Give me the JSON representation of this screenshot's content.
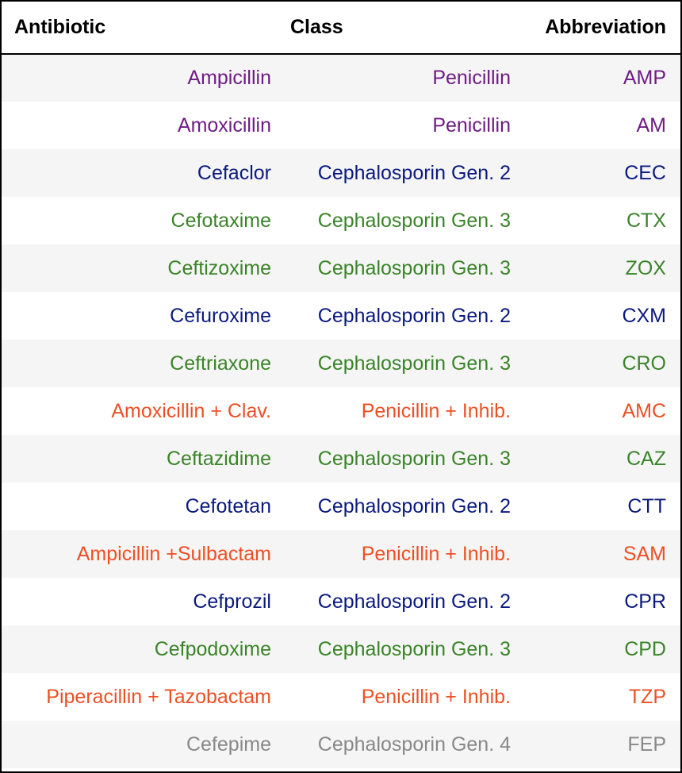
{
  "table": {
    "headers": [
      "Antibiotic",
      "Class",
      "Abbreviation"
    ],
    "class_colors": {
      "Penicillin": "#6e1c84",
      "Cephalosporin Gen. 2": "#0b1a7e",
      "Cephalosporin Gen. 3": "#3a8428",
      "Penicillin + Inhib.": "#ee4f24",
      "Cephalosporin Gen. 4": "#888888"
    },
    "rows": [
      {
        "antibiotic": "Ampicillin",
        "class": "Penicillin",
        "abbreviation": "AMP",
        "color": "#6e1c84"
      },
      {
        "antibiotic": "Amoxicillin",
        "class": "Penicillin",
        "abbreviation": "AM",
        "color": "#6e1c84"
      },
      {
        "antibiotic": "Cefaclor",
        "class": "Cephalosporin Gen. 2",
        "abbreviation": "CEC",
        "color": "#0b1a7e"
      },
      {
        "antibiotic": "Cefotaxime",
        "class": "Cephalosporin Gen. 3",
        "abbreviation": "CTX",
        "color": "#3a8428"
      },
      {
        "antibiotic": "Ceftizoxime",
        "class": "Cephalosporin Gen. 3",
        "abbreviation": "ZOX",
        "color": "#3a8428"
      },
      {
        "antibiotic": "Cefuroxime",
        "class": "Cephalosporin Gen. 2",
        "abbreviation": "CXM",
        "color": "#0b1a7e"
      },
      {
        "antibiotic": "Ceftriaxone",
        "class": "Cephalosporin Gen. 3",
        "abbreviation": "CRO",
        "color": "#3a8428"
      },
      {
        "antibiotic": "Amoxicillin + Clav.",
        "class": "Penicillin + Inhib.",
        "abbreviation": "AMC",
        "color": "#ee4f24"
      },
      {
        "antibiotic": "Ceftazidime",
        "class": "Cephalosporin Gen. 3",
        "abbreviation": "CAZ",
        "color": "#3a8428"
      },
      {
        "antibiotic": "Cefotetan",
        "class": "Cephalosporin Gen. 2",
        "abbreviation": "CTT",
        "color": "#0b1a7e"
      },
      {
        "antibiotic": "Ampicillin +Sulbactam",
        "class": "Penicillin + Inhib.",
        "abbreviation": "SAM",
        "color": "#ee4f24"
      },
      {
        "antibiotic": "Cefprozil",
        "class": "Cephalosporin Gen. 2",
        "abbreviation": "CPR",
        "color": "#0b1a7e"
      },
      {
        "antibiotic": "Cefpodoxime",
        "class": "Cephalosporin Gen. 3",
        "abbreviation": "CPD",
        "color": "#3a8428"
      },
      {
        "antibiotic": "Piperacillin + Tazobactam",
        "class": "Penicillin + Inhib.",
        "abbreviation": "TZP",
        "color": "#ee4f24"
      },
      {
        "antibiotic": "Cefepime",
        "class": "Cephalosporin Gen. 4",
        "abbreviation": "FEP",
        "color": "#888888"
      }
    ]
  }
}
